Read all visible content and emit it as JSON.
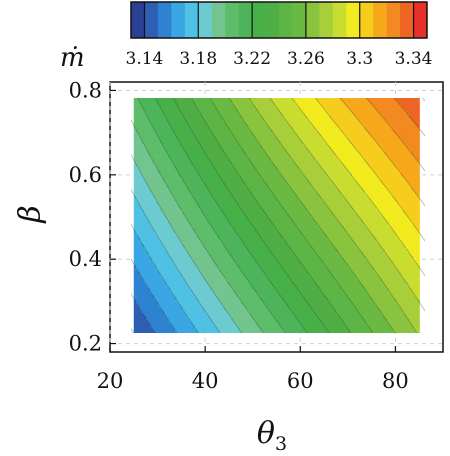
{
  "chart_data": {
    "type": "heatmap",
    "subtype": "filled-contour",
    "x": {
      "label": "θ",
      "label_subscript": "3",
      "range": [
        20,
        90
      ],
      "data_range": [
        25,
        85
      ],
      "ticks": [
        "20",
        "40",
        "60",
        "80"
      ]
    },
    "y": {
      "label": "β",
      "range": [
        0.18,
        0.82
      ],
      "data_range": [
        0.2,
        0.8
      ],
      "ticks": [
        "0.2",
        "0.4",
        "0.6",
        "0.8"
      ]
    },
    "grid": "dashed",
    "colorbar": {
      "label": "ṁ",
      "placement": "top",
      "range": [
        3.13,
        3.35
      ],
      "ticks": [
        "3.14",
        "3.18",
        "3.22",
        "3.26",
        "3.3",
        "3.34"
      ],
      "levels": [
        3.13,
        3.14,
        3.15,
        3.16,
        3.17,
        3.18,
        3.19,
        3.2,
        3.21,
        3.22,
        3.23,
        3.24,
        3.25,
        3.26,
        3.27,
        3.28,
        3.29,
        3.3,
        3.31,
        3.32,
        3.33,
        3.34,
        3.35
      ],
      "colors": [
        "#2b3f95",
        "#2e5fb4",
        "#2f82d2",
        "#3aa6e4",
        "#4fc1e4",
        "#6ccbd0",
        "#73c48f",
        "#5dbd6a",
        "#4db45a",
        "#47b049",
        "#4fae45",
        "#5cb545",
        "#6ab943",
        "#8ac43e",
        "#a8cf3a",
        "#c9dc30",
        "#f1eb1f",
        "#f6cd1d",
        "#f7a81b",
        "#f28a21",
        "#ee6524",
        "#e8302a"
      ]
    },
    "field_description": "m increases with both theta_3 and beta",
    "samples": [
      {
        "theta3": 25,
        "beta": 0.2,
        "m": 3.137
      },
      {
        "theta3": 25,
        "beta": 0.8,
        "m": 3.21
      },
      {
        "theta3": 85,
        "beta": 0.2,
        "m": 3.268
      },
      {
        "theta3": 85,
        "beta": 0.8,
        "m": 3.341
      },
      {
        "theta3": 60,
        "beta": 0.5,
        "m": 3.262
      }
    ]
  }
}
